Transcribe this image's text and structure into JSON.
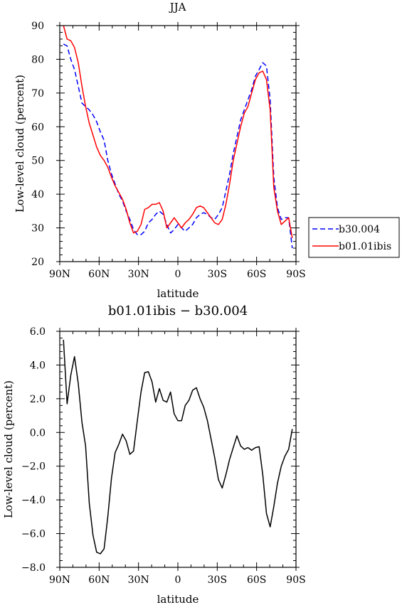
{
  "chart_data": [
    {
      "type": "line",
      "title": "JJA",
      "xlabel": "latitude",
      "ylabel": "Low-level cloud (percent)",
      "xlim": [
        90,
        -90
      ],
      "ylim": [
        20,
        90
      ],
      "xticks": [
        90,
        60,
        30,
        0,
        -30,
        -60,
        -90
      ],
      "xtick_labels": [
        "90N",
        "60N",
        "30N",
        "0",
        "30S",
        "60S",
        "90S"
      ],
      "yticks": [
        20,
        30,
        40,
        50,
        60,
        70,
        80,
        90
      ],
      "ytick_labels": [
        "20",
        "30",
        "40",
        "50",
        "60",
        "70",
        "80",
        "90"
      ],
      "legend_position": "right",
      "grid": false,
      "series": [
        {
          "name": "b30.004",
          "color": "#0000ff",
          "dash": "dashed",
          "x": [
            87.2,
            84.4,
            81.6,
            78.8,
            75.9,
            73.1,
            70.3,
            67.5,
            64.7,
            61.9,
            59.1,
            56.2,
            53.4,
            50.6,
            47.8,
            45.0,
            42.2,
            39.4,
            36.6,
            33.8,
            30.9,
            28.1,
            25.3,
            22.5,
            19.7,
            16.9,
            14.1,
            11.2,
            8.4,
            5.6,
            2.8,
            0.0,
            -2.8,
            -5.6,
            -8.4,
            -11.2,
            -14.1,
            -16.9,
            -19.7,
            -22.5,
            -25.3,
            -28.1,
            -30.9,
            -33.8,
            -36.6,
            -39.4,
            -42.2,
            -45.0,
            -47.8,
            -50.6,
            -53.4,
            -56.2,
            -59.1,
            -61.9,
            -64.7,
            -67.5,
            -70.3,
            -73.1,
            -75.9,
            -78.8,
            -81.6,
            -84.4,
            -87.2
          ],
          "y": [
            84.5,
            84.0,
            80.0,
            77.0,
            72.0,
            67.0,
            66.0,
            65.0,
            63.5,
            61.5,
            58.5,
            56.0,
            50.0,
            46.0,
            43.0,
            40.0,
            38.0,
            35.0,
            32.5,
            29.5,
            28.0,
            28.0,
            29.0,
            31.5,
            32.5,
            34.0,
            35.0,
            34.0,
            31.0,
            28.5,
            29.5,
            31.0,
            30.0,
            29.0,
            30.0,
            31.0,
            33.0,
            34.0,
            34.5,
            34.0,
            33.0,
            32.5,
            34.0,
            36.0,
            41.0,
            46.0,
            52.0,
            57.0,
            62.0,
            65.0,
            68.0,
            71.0,
            75.0,
            77.0,
            79.0,
            78.0,
            68.0,
            45.0,
            36.0,
            32.5,
            33.0,
            33.0,
            24.0
          ]
        },
        {
          "name": "b01.01ibis",
          "color": "#ff0000",
          "dash": "solid",
          "x": [
            87.2,
            84.4,
            81.6,
            78.8,
            75.9,
            73.1,
            70.3,
            67.5,
            64.7,
            61.9,
            59.1,
            56.2,
            53.4,
            50.6,
            47.8,
            45.0,
            42.2,
            39.4,
            36.6,
            33.8,
            30.9,
            28.1,
            25.3,
            22.5,
            19.7,
            16.9,
            14.1,
            11.2,
            8.4,
            5.6,
            2.8,
            0.0,
            -2.8,
            -5.6,
            -8.4,
            -11.2,
            -14.1,
            -16.9,
            -19.7,
            -22.5,
            -25.3,
            -28.1,
            -30.9,
            -33.8,
            -36.6,
            -39.4,
            -42.2,
            -45.0,
            -47.8,
            -50.6,
            -53.4,
            -56.2,
            -59.1,
            -61.9,
            -64.7,
            -67.5,
            -70.3,
            -73.1,
            -75.9,
            -78.8,
            -81.6,
            -84.4,
            -87.2
          ],
          "y": [
            90.0,
            86.0,
            85.5,
            83.5,
            79.0,
            72.0,
            66.0,
            61.0,
            57.5,
            54.0,
            51.5,
            50.0,
            48.0,
            45.0,
            42.5,
            40.5,
            38.5,
            35.5,
            31.5,
            28.5,
            29.0,
            31.0,
            35.5,
            36.0,
            37.0,
            37.0,
            37.5,
            35.0,
            30.0,
            31.5,
            33.0,
            31.5,
            30.0,
            31.5,
            32.5,
            34.0,
            36.0,
            36.5,
            36.0,
            34.5,
            33.0,
            31.5,
            31.0,
            32.5,
            37.0,
            43.0,
            50.0,
            55.0,
            60.0,
            64.0,
            66.0,
            70.0,
            74.0,
            76.0,
            76.5,
            74.0,
            65.0,
            42.0,
            35.0,
            31.0,
            32.0,
            33.0,
            27.0
          ]
        }
      ]
    },
    {
      "type": "line",
      "title": "b01.01ibis − b30.004",
      "xlabel": "latitude",
      "ylabel": "Low-level cloud (percent)",
      "xlim": [
        90,
        -90
      ],
      "ylim": [
        -8.0,
        6.0
      ],
      "xticks": [
        90,
        60,
        30,
        0,
        -30,
        -60,
        -90
      ],
      "xtick_labels": [
        "90N",
        "60N",
        "30N",
        "0",
        "30S",
        "60S",
        "90S"
      ],
      "yticks": [
        -8,
        -6,
        -4,
        -2,
        0,
        2,
        4,
        6
      ],
      "ytick_labels": [
        "−8.0",
        "−6.0",
        "−4.0",
        "−2.0",
        "0.0",
        "2.0",
        "4.0",
        "6.0"
      ],
      "grid": false,
      "series": [
        {
          "color": "#000000",
          "dash": "solid",
          "x": [
            87.2,
            84.4,
            81.6,
            78.8,
            75.9,
            73.1,
            70.3,
            67.5,
            64.7,
            61.9,
            59.1,
            56.2,
            53.4,
            50.6,
            47.8,
            45.0,
            42.2,
            39.4,
            36.6,
            33.8,
            30.9,
            28.1,
            25.3,
            22.5,
            19.7,
            16.9,
            14.1,
            11.2,
            8.4,
            5.6,
            2.8,
            0.0,
            -2.8,
            -5.6,
            -8.4,
            -11.2,
            -14.1,
            -16.9,
            -19.7,
            -22.5,
            -25.3,
            -28.1,
            -30.9,
            -33.8,
            -36.6,
            -39.4,
            -42.2,
            -45.0,
            -47.8,
            -50.6,
            -53.4,
            -56.2,
            -59.1,
            -61.9,
            -64.7,
            -67.5,
            -70.3,
            -73.1,
            -75.9,
            -78.8,
            -81.6,
            -84.4,
            -87.2
          ],
          "y": [
            5.5,
            1.7,
            3.4,
            4.5,
            2.9,
            0.6,
            -0.8,
            -4.2,
            -6.1,
            -7.1,
            -7.2,
            -6.9,
            -5.0,
            -2.7,
            -1.2,
            -0.7,
            -0.1,
            -0.5,
            -1.3,
            -1.1,
            0.7,
            2.4,
            3.55,
            3.6,
            3.0,
            1.8,
            2.6,
            1.9,
            1.8,
            2.4,
            1.1,
            0.7,
            0.7,
            1.6,
            1.9,
            2.5,
            2.65,
            2.0,
            1.5,
            0.7,
            -0.4,
            -1.5,
            -2.8,
            -3.3,
            -2.5,
            -1.6,
            -0.9,
            -0.2,
            -0.8,
            -1.0,
            -0.9,
            -1.05,
            -0.9,
            -0.85,
            -2.5,
            -4.8,
            -5.6,
            -4.4,
            -3.0,
            -2.0,
            -1.4,
            -1.0,
            0.2
          ]
        }
      ]
    }
  ]
}
